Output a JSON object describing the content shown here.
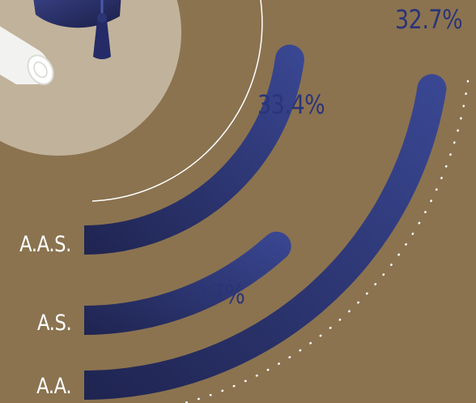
{
  "chart_data": {
    "type": "radial-bar",
    "categories": [
      "A.A.S.",
      "A.S.",
      "A.A."
    ],
    "values": [
      33.4,
      17,
      32.7
    ],
    "value_labels": [
      "33.4%",
      "17%",
      "32.7%"
    ]
  },
  "colors": {
    "background": "#8b7350",
    "circle": "#c1b29b",
    "bar_start": "#1f2450",
    "bar_end": "#3a4894",
    "value_text": "#2a3478",
    "category_text": "#ffffff",
    "dotted_guide": "#ffffff"
  },
  "decoration": {
    "icons": [
      "graduation-cap-icon",
      "diploma-scroll-icon"
    ]
  }
}
